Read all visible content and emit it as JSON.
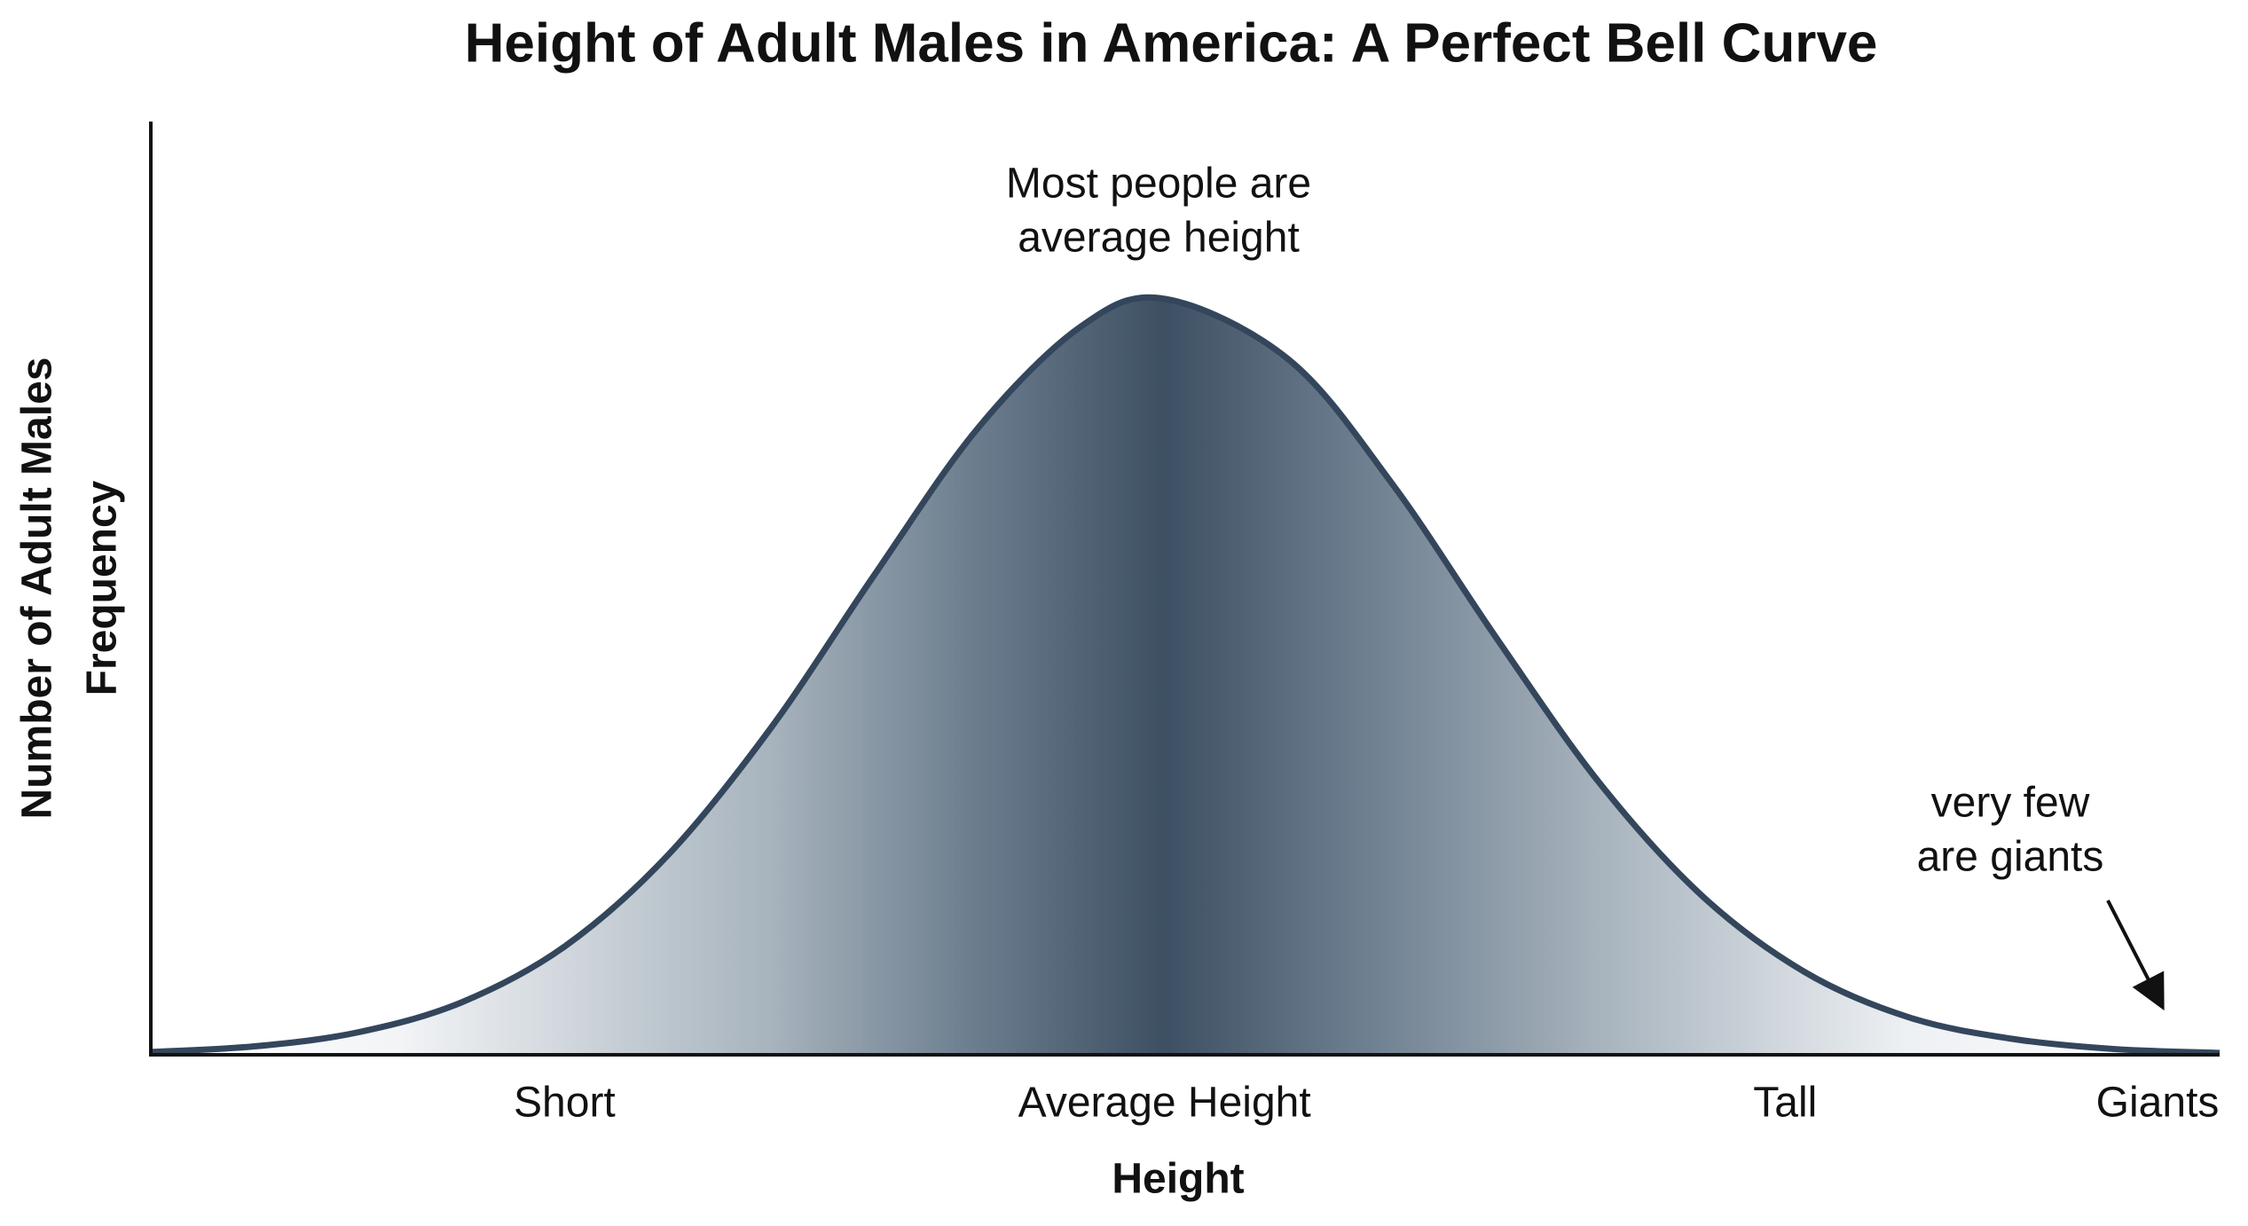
{
  "chart_data": {
    "type": "area",
    "title": "Height of Adult Males in America: A Perfect Bell Curve",
    "xlabel": "Height",
    "ylabel": [
      "Number of Adult Males",
      "Frequency"
    ],
    "x": [
      0,
      5,
      10,
      15,
      20,
      25,
      30,
      35,
      40,
      45,
      49,
      55,
      60,
      65,
      70,
      75,
      80,
      85,
      90,
      95,
      100
    ],
    "values": [
      0.3,
      0.9,
      2.4,
      5.6,
      11.6,
      21.4,
      35.1,
      51.5,
      67.2,
      78.1,
      81,
      74.5,
      61.2,
      44.8,
      29.2,
      17.0,
      8.8,
      4.0,
      1.7,
      0.6,
      0.2
    ],
    "color": "#34465c",
    "xlim": [
      0,
      100
    ],
    "ylim": [
      0,
      100
    ],
    "xticks": [
      {
        "value": 20,
        "label": "Short"
      },
      {
        "value": 49,
        "label": "Average Height"
      },
      {
        "value": 79,
        "label": "Tall"
      },
      {
        "value": 97,
        "label": "Giants"
      }
    ],
    "annotations": [
      {
        "lines": [
          "Most people are",
          "average height"
        ]
      },
      {
        "lines": [
          "very few",
          "are giants"
        ]
      }
    ]
  }
}
